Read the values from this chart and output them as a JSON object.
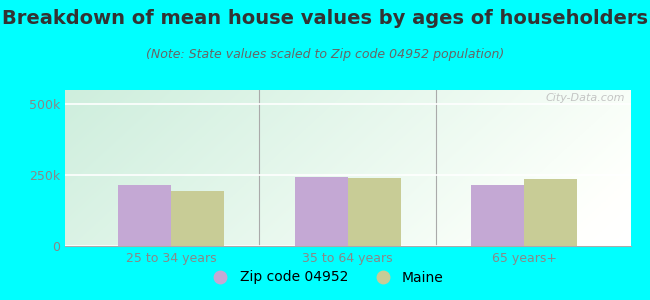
{
  "title": "Breakdown of mean house values by ages of householders",
  "subtitle": "(Note: State values scaled to Zip code 04952 population)",
  "categories": [
    "25 to 34 years",
    "35 to 64 years",
    "65 years+"
  ],
  "zip_values": [
    215000,
    245000,
    215000
  ],
  "state_values": [
    195000,
    240000,
    235000
  ],
  "ylim": [
    0,
    550000
  ],
  "ytick_labels": [
    "0",
    "250k",
    "500k"
  ],
  "ytick_vals": [
    0,
    250000,
    500000
  ],
  "bar_color_zip": "#c4a8d4",
  "bar_color_state": "#c8cc96",
  "background_outer": "#00ffff",
  "grad_color_top_left": "#ceeedd",
  "grad_color_bottom_right": "#f8fef8",
  "legend_zip_label": "Zip code 04952",
  "legend_state_label": "Maine",
  "bar_width": 0.3,
  "watermark": "City-Data.com",
  "title_fontsize": 14,
  "subtitle_fontsize": 9,
  "tick_fontsize": 9,
  "legend_fontsize": 10,
  "axis_color": "#aaaaaa",
  "tick_label_color": "#888888",
  "title_color": "#333333",
  "subtitle_color": "#666666"
}
